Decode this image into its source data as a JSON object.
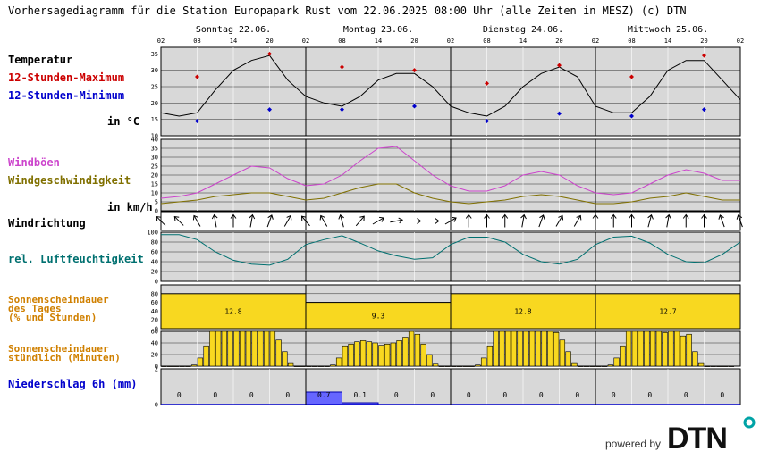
{
  "title": "Vorhersagediagramm für die Station Europapark Rust vom 22.06.2025 08:00 Uhr (alle Zeiten in MESZ)   (c) DTN",
  "days": [
    "Sonntag 22.06.",
    "Montag 23.06.",
    "Dienstag 24.06.",
    "Mittwoch 25.06."
  ],
  "hour_ticks": [
    "02",
    "08",
    "14",
    "20",
    "02",
    "08",
    "14",
    "20",
    "02",
    "08",
    "14",
    "20",
    "02",
    "08",
    "14",
    "20",
    "02"
  ],
  "labels": {
    "temperature": "Temperatur",
    "tmax": "12-Stunden-Maximum",
    "tmin": "12-Stunden-Minimum",
    "temp_unit": "in °C",
    "gusts": "Windböen",
    "windspeed": "Windgeschwindigkeit",
    "wind_unit": "in km/h",
    "winddir": "Windrichtung",
    "humidity": "rel. Luftfeuchtigkeit",
    "sun_day_1": "Sonnenscheindauer",
    "sun_day_2": "des Tages",
    "sun_day_3": "(% und Stunden)",
    "sun_hour_1": "Sonnenscheindauer",
    "sun_hour_2": "stündlich (Minuten)",
    "precip": "Niederschlag 6h (mm)"
  },
  "powered_by": "powered by",
  "brand": "DTN",
  "colors": {
    "panel_bg": "#d8d8d8",
    "temperature": "#000000",
    "tmax": "#cc0000",
    "tmin": "#0000cc",
    "gusts": "#cc44cc",
    "windspeed": "#807000",
    "humidity": "#007070",
    "sunshine_label": "#d08000",
    "sunshine_fill": "#f8d820",
    "precip_label": "#0000cc",
    "precip_fill": "#6666ff",
    "brand_accent": "#00a3a6"
  },
  "chart_data": [
    {
      "type": "line",
      "name": "temperature",
      "ylim": [
        10,
        37
      ],
      "yticks": [
        "10",
        "15",
        "20",
        "25",
        "30",
        "35"
      ],
      "x_hours": [
        0,
        3,
        6,
        9,
        12,
        15,
        18,
        21,
        24,
        27,
        30,
        33,
        36,
        39,
        42,
        45,
        48,
        51,
        54,
        57,
        60,
        63,
        66,
        69,
        72,
        75,
        78,
        81,
        84,
        87,
        90,
        93,
        96
      ],
      "values": [
        17,
        16,
        17,
        24,
        30,
        33,
        34.5,
        27,
        22,
        20,
        19,
        22,
        27,
        29,
        29,
        25,
        19,
        17,
        16,
        19,
        25,
        29,
        31,
        28,
        19,
        17,
        17,
        22,
        30,
        33,
        33,
        27,
        21
      ],
      "tmax": {
        "x_hours": [
          6,
          18,
          30,
          42,
          54,
          66,
          78,
          90
        ],
        "values": [
          28,
          35,
          31,
          30,
          26,
          31.5,
          28,
          34.5
        ]
      },
      "tmin": {
        "x_hours": [
          6,
          18,
          30,
          42,
          54,
          66,
          78,
          90
        ],
        "values": [
          14.5,
          18,
          18,
          19,
          14.5,
          16.8,
          16,
          18
        ]
      }
    },
    {
      "type": "line",
      "name": "wind",
      "ylim": [
        0,
        40
      ],
      "yticks": [
        "0",
        "5",
        "10",
        "15",
        "20",
        "25",
        "30",
        "35",
        "40"
      ],
      "x_hours": [
        0,
        3,
        6,
        9,
        12,
        15,
        18,
        21,
        24,
        27,
        30,
        33,
        36,
        39,
        42,
        45,
        48,
        51,
        54,
        57,
        60,
        63,
        66,
        69,
        72,
        75,
        78,
        81,
        84,
        87,
        90,
        93,
        96
      ],
      "gusts": [
        7,
        8,
        10,
        15,
        20,
        25,
        24,
        18,
        14,
        15,
        20,
        28,
        35,
        36,
        28,
        20,
        14,
        11,
        11,
        14,
        20,
        22,
        20,
        14,
        10,
        9,
        10,
        15,
        20,
        23,
        21,
        17,
        17
      ],
      "windspeed": [
        4,
        5,
        6,
        8,
        9,
        10,
        10,
        8,
        6,
        7,
        10,
        13,
        15,
        15,
        10,
        7,
        5,
        4,
        5,
        6,
        8,
        9,
        8,
        6,
        4,
        4,
        5,
        7,
        8,
        10,
        8,
        6,
        6
      ]
    },
    {
      "type": "line",
      "name": "winddir",
      "note": "arrows every 3 hours pointing to wind direction (degrees, 0 = arrow up)",
      "x_hours": [
        0,
        3,
        6,
        9,
        12,
        15,
        18,
        21,
        24,
        27,
        30,
        33,
        36,
        39,
        42,
        45,
        48,
        51,
        54,
        57,
        60,
        63,
        66,
        69,
        72,
        75,
        78,
        81,
        84,
        87,
        90,
        93,
        96
      ],
      "angles": [
        -45,
        -45,
        -30,
        -10,
        0,
        10,
        20,
        30,
        -40,
        -30,
        -15,
        40,
        60,
        80,
        90,
        90,
        60,
        0,
        0,
        0,
        10,
        20,
        30,
        30,
        0,
        0,
        0,
        15,
        10,
        0,
        0,
        -20,
        -20
      ]
    },
    {
      "type": "line",
      "name": "humidity",
      "ylim": [
        0,
        100
      ],
      "yticks": [
        "0",
        "20",
        "40",
        "60",
        "80",
        "100"
      ],
      "x_hours": [
        0,
        3,
        6,
        9,
        12,
        15,
        18,
        21,
        24,
        27,
        30,
        33,
        36,
        39,
        42,
        45,
        48,
        51,
        54,
        57,
        60,
        63,
        66,
        69,
        72,
        75,
        78,
        81,
        84,
        87,
        90,
        93,
        96
      ],
      "values": [
        95,
        95,
        85,
        60,
        43,
        35,
        33,
        45,
        75,
        85,
        93,
        78,
        62,
        52,
        45,
        48,
        75,
        90,
        90,
        80,
        55,
        40,
        35,
        45,
        75,
        90,
        92,
        78,
        55,
        40,
        38,
        55,
        80
      ]
    },
    {
      "type": "bar",
      "name": "sunshine_daily",
      "days": [
        "Sonntag 22.06.",
        "Montag 23.06.",
        "Dienstag 24.06.",
        "Mittwoch 25.06."
      ],
      "percent": [
        80,
        60,
        80,
        80
      ],
      "hours": [
        "12.8",
        "9.3",
        "12.8",
        "12.7"
      ],
      "ylim": [
        0,
        100
      ],
      "yticks": [
        "0",
        "20",
        "40",
        "60",
        "80"
      ]
    },
    {
      "type": "bar",
      "name": "sunshine_hourly",
      "ylim": [
        0,
        60
      ],
      "yticks": [
        "0",
        "20",
        "40",
        "60"
      ],
      "start_hour": 2,
      "values": [
        0,
        0,
        0,
        0,
        0,
        2,
        14,
        35,
        60,
        60,
        60,
        60,
        60,
        60,
        60,
        60,
        60,
        60,
        60,
        45,
        25,
        6,
        0,
        0,
        0,
        0,
        0,
        0,
        2,
        14,
        35,
        38,
        42,
        44,
        42,
        40,
        36,
        38,
        40,
        44,
        50,
        60,
        55,
        38,
        20,
        5,
        0,
        0,
        0,
        0,
        0,
        0,
        2,
        14,
        35,
        60,
        60,
        60,
        60,
        60,
        60,
        60,
        60,
        60,
        60,
        58,
        45,
        25,
        6,
        0,
        0,
        0,
        0,
        0,
        2,
        14,
        35,
        60,
        60,
        60,
        60,
        60,
        60,
        58,
        60,
        60,
        52,
        55,
        25,
        6,
        0,
        0,
        0,
        0,
        0
      ]
    },
    {
      "type": "bar",
      "name": "precipitation_6h",
      "ylim": [
        0,
        2
      ],
      "yticks": [
        "0",
        "2"
      ],
      "values": [
        0,
        0,
        0,
        0,
        0.7,
        0.1,
        0,
        0,
        0,
        0,
        0,
        0,
        0,
        0,
        0,
        0
      ],
      "labels": [
        "0",
        "0",
        "0",
        "0",
        "0.7",
        "0.1",
        "0",
        "0",
        "0",
        "0",
        "0",
        "0",
        "0",
        "0",
        "0",
        "0"
      ]
    }
  ]
}
